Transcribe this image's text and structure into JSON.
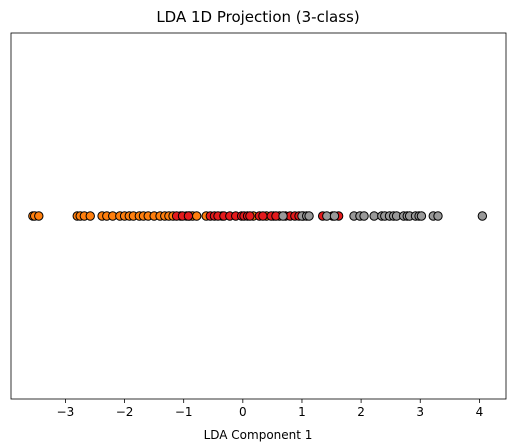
{
  "chart_data": {
    "type": "scatter",
    "title": "LDA 1D Projection (3-class)",
    "xlabel": "LDA Component 1",
    "ylabel": "",
    "xlim": [
      -3.92,
      4.45
    ],
    "ylim": [
      -0.055,
      0.055
    ],
    "xticks": [
      -3,
      -2,
      -1,
      0,
      1,
      2,
      3,
      4
    ],
    "xtick_labels": [
      "−3",
      "−2",
      "−1",
      "0",
      "1",
      "2",
      "3",
      "4"
    ],
    "y_ticks_shown": false,
    "grid": false,
    "legend": "none",
    "marker_edge_color": "#000000",
    "series": [
      {
        "color": "#ff7f0e",
        "x": [
          -3.55,
          -3.52,
          -3.45,
          -2.8,
          -2.75,
          -2.68,
          -2.58,
          -2.38,
          -2.3,
          -2.2,
          -2.08,
          -2.0,
          -1.92,
          -1.85,
          -1.75,
          -1.68,
          -1.6,
          -1.5,
          -1.4,
          -1.32,
          -1.25,
          -1.18,
          -1.05,
          -0.95,
          -0.9,
          -0.85,
          -0.78,
          -0.62,
          -0.35,
          0.18,
          0.4,
          0.52,
          0.62
        ]
      },
      {
        "color": "#e41a1c",
        "x": [
          -1.12,
          -1.02,
          -0.92,
          -0.55,
          -0.48,
          -0.42,
          -0.32,
          -0.22,
          -0.12,
          -0.02,
          0.02,
          0.08,
          0.12,
          0.28,
          0.34,
          0.48,
          0.56,
          0.72,
          0.8,
          0.88,
          0.95,
          1.02,
          1.35,
          1.52,
          1.62
        ]
      },
      {
        "color": "#999999",
        "x": [
          0.68,
          1.0,
          1.08,
          1.12,
          1.42,
          1.55,
          1.88,
          1.98,
          2.05,
          2.22,
          2.35,
          2.4,
          2.48,
          2.55,
          2.6,
          2.72,
          2.78,
          2.82,
          2.92,
          2.98,
          3.02,
          3.22,
          3.3,
          4.05
        ]
      }
    ]
  }
}
